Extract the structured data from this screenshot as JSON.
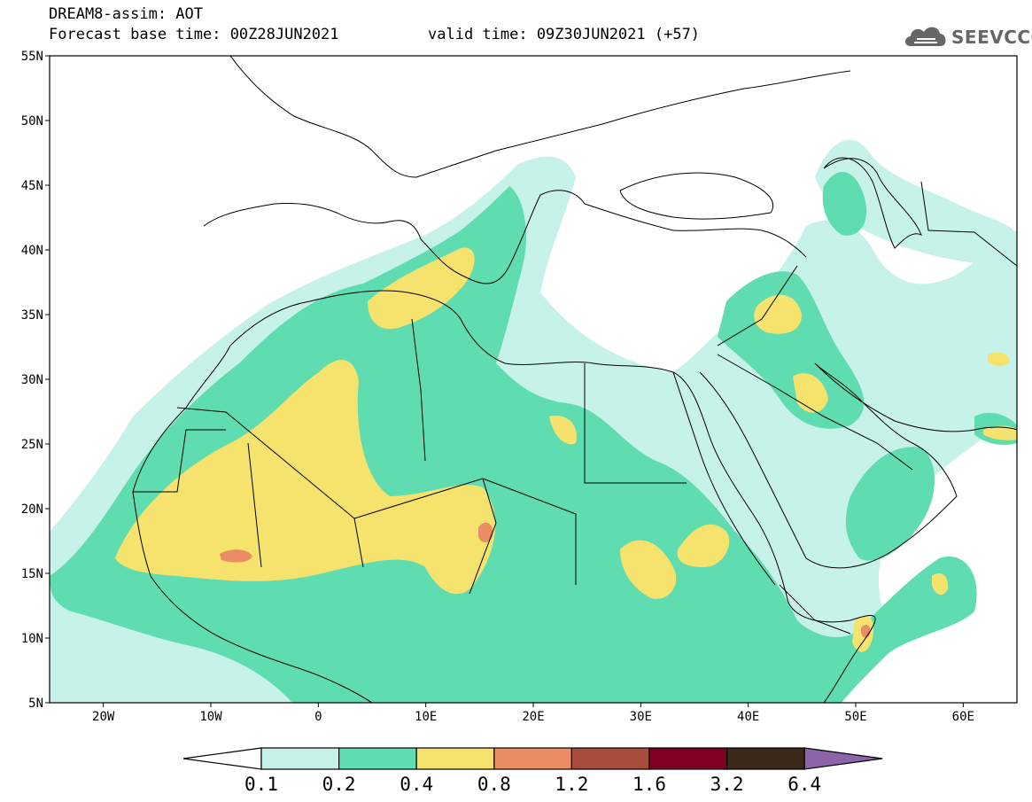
{
  "header": {
    "model_title": "DREAM8-assim: AOT",
    "base_time": "Forecast base time: 00Z28JUN2021",
    "valid_time": "valid time: 09Z30JUN2021 (+57)"
  },
  "logo": {
    "text": "SEEVCCC",
    "icon": "cloud-icon",
    "color": "#666666"
  },
  "map": {
    "lat_range": [
      5,
      55
    ],
    "lon_range": [
      -25,
      65
    ],
    "lat_ticks": [
      {
        "value": 55,
        "label": "55N"
      },
      {
        "value": 50,
        "label": "50N"
      },
      {
        "value": 45,
        "label": "45N"
      },
      {
        "value": 40,
        "label": "40N"
      },
      {
        "value": 35,
        "label": "35N"
      },
      {
        "value": 30,
        "label": "30N"
      },
      {
        "value": 25,
        "label": "25N"
      },
      {
        "value": 20,
        "label": "20N"
      },
      {
        "value": 15,
        "label": "15N"
      },
      {
        "value": 10,
        "label": "10N"
      },
      {
        "value": 5,
        "label": "5N"
      }
    ],
    "lon_ticks": [
      {
        "value": -20,
        "label": "20W"
      },
      {
        "value": -10,
        "label": "10W"
      },
      {
        "value": 0,
        "label": "0"
      },
      {
        "value": 10,
        "label": "10E"
      },
      {
        "value": 20,
        "label": "20E"
      },
      {
        "value": 30,
        "label": "30E"
      },
      {
        "value": 40,
        "label": "40E"
      },
      {
        "value": 50,
        "label": "50E"
      },
      {
        "value": 60,
        "label": "60E"
      }
    ]
  },
  "legend": {
    "bins": [
      {
        "color": "#c6f2ea"
      },
      {
        "color": "#5fdcb0"
      },
      {
        "color": "#f5e36e"
      },
      {
        "color": "#ea8c64"
      },
      {
        "color": "#a84c3c"
      },
      {
        "color": "#7e0020"
      },
      {
        "color": "#3c2818"
      }
    ],
    "low_arrow_color": "#ffffff",
    "high_arrow_color": "#8c64aa",
    "labels": [
      "0.1",
      "0.2",
      "0.4",
      "0.8",
      "1.2",
      "1.6",
      "3.2",
      "6.4"
    ]
  }
}
